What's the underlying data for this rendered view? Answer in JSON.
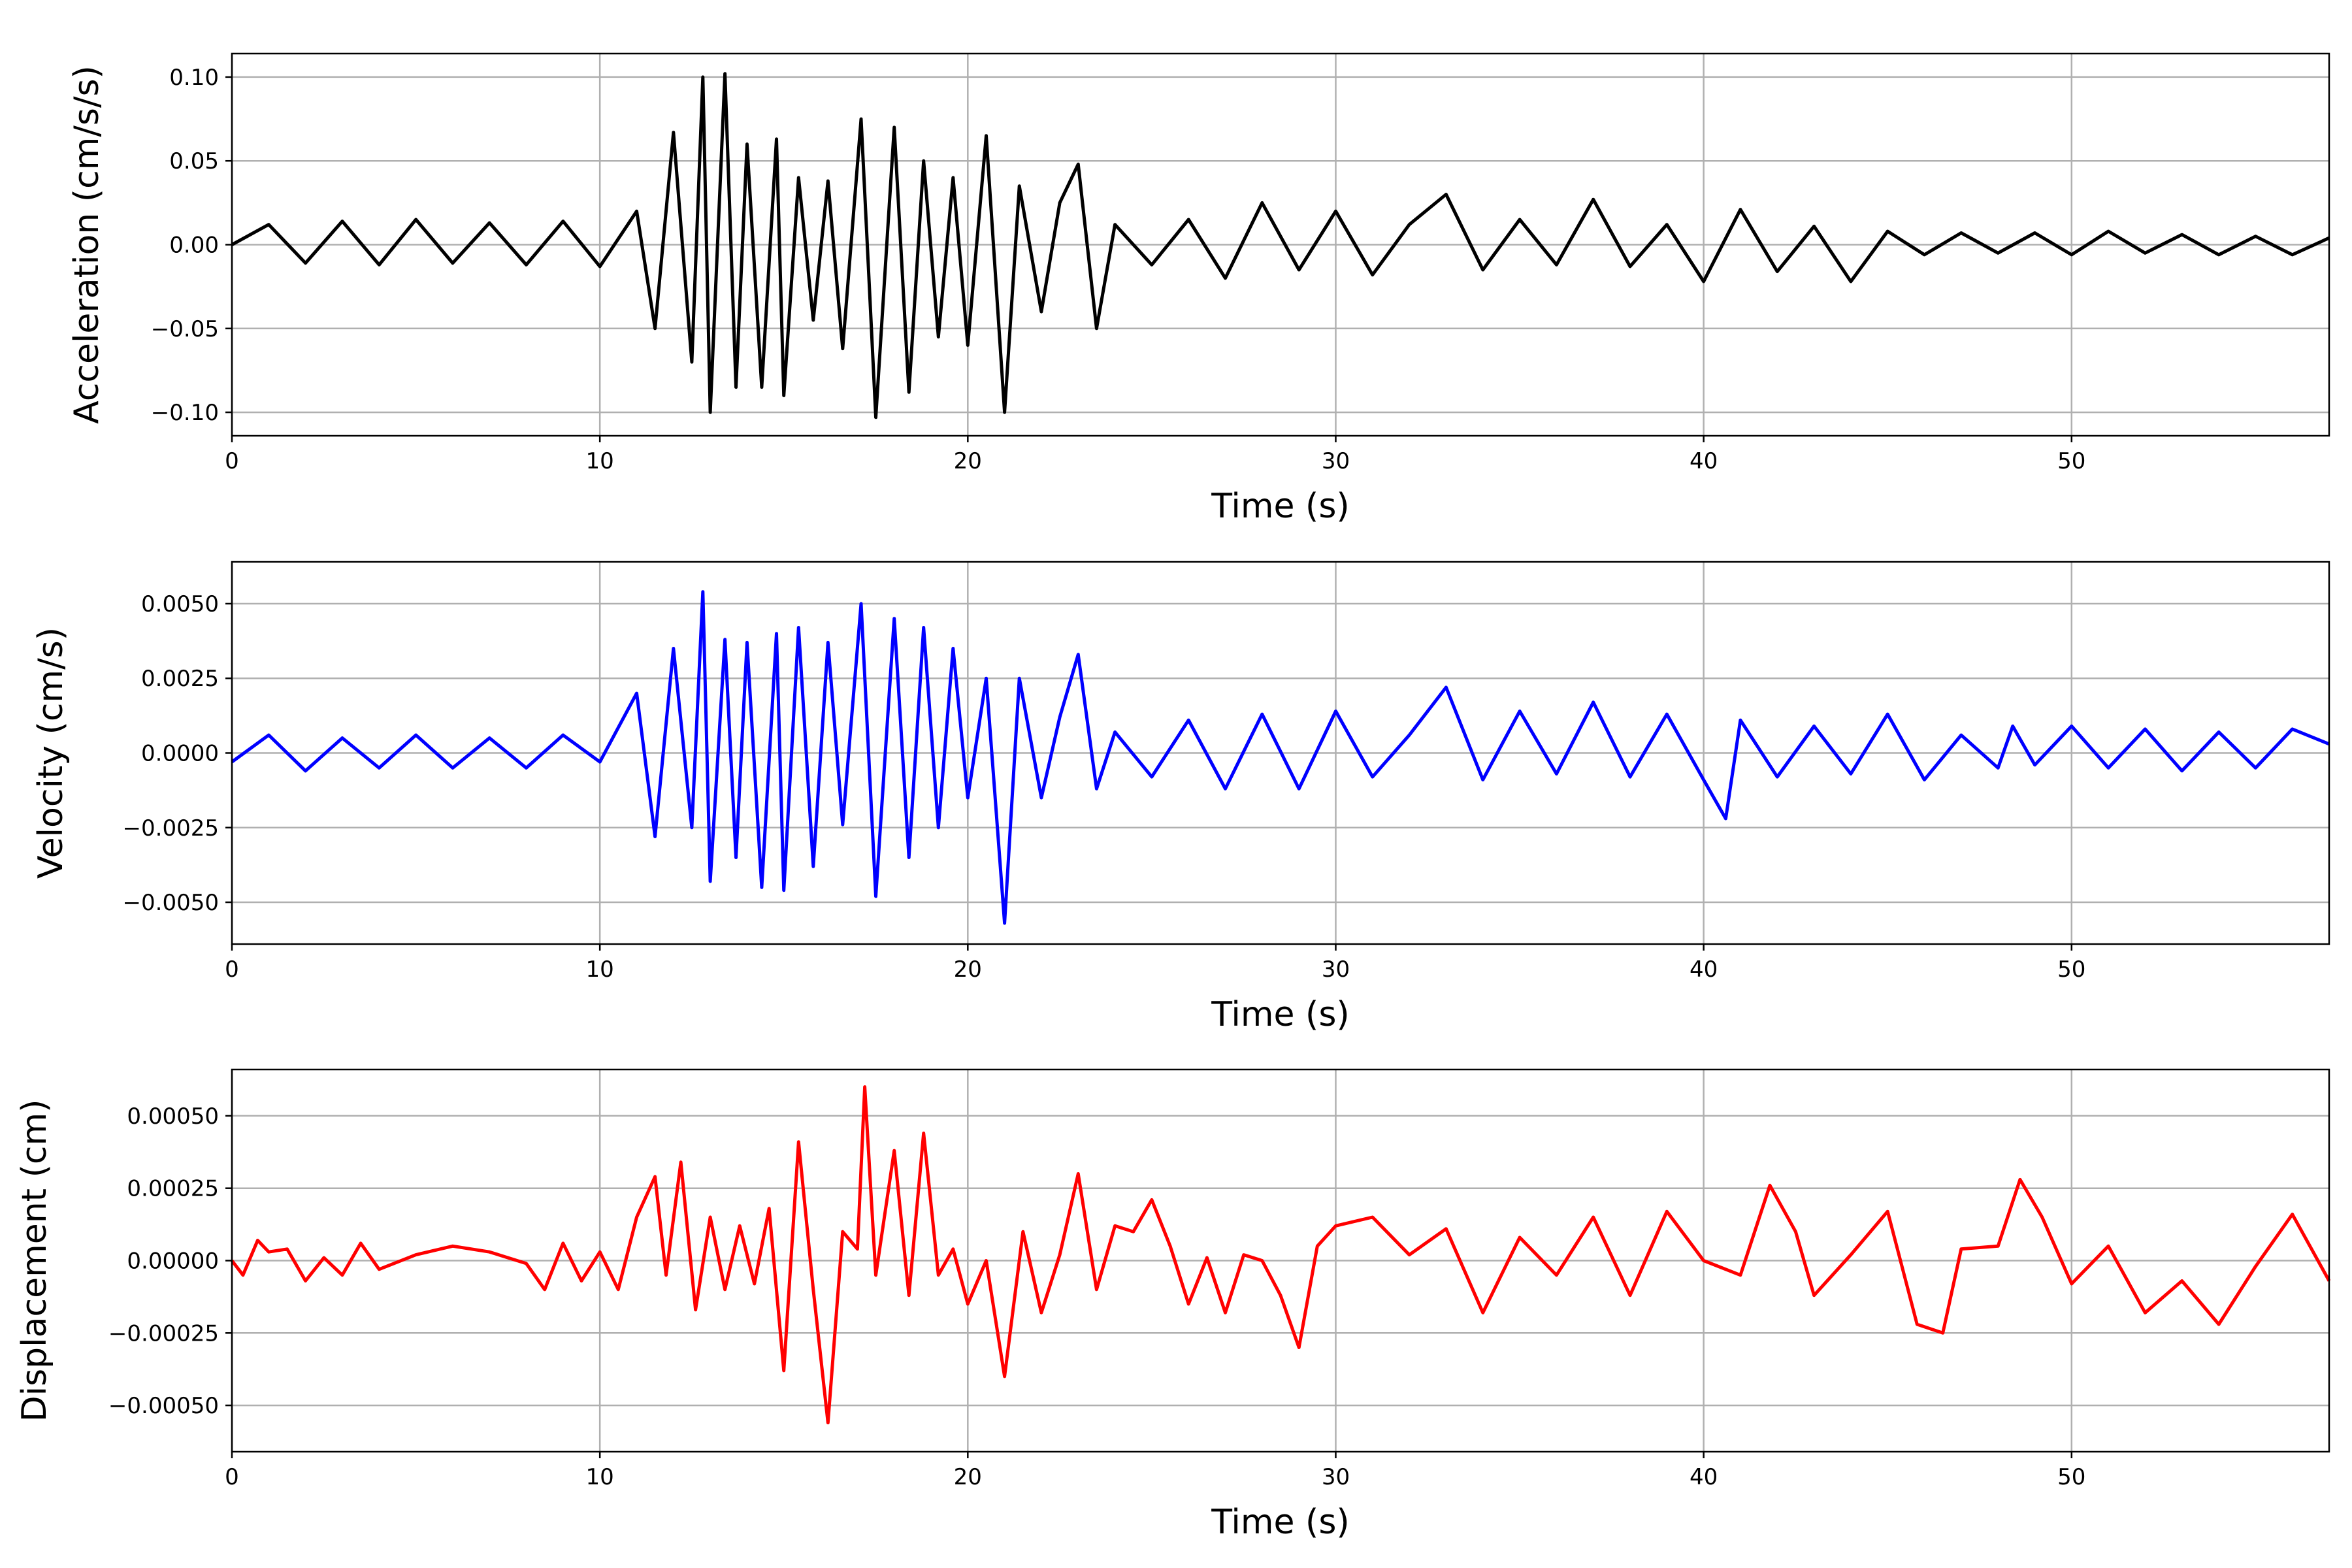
{
  "chart_data": [
    {
      "type": "line",
      "id": "acceleration",
      "xlabel": "Time (s)",
      "ylabel": "Acceleration (cm/s/s)",
      "xlim": [
        0,
        57
      ],
      "ylim": [
        -0.114,
        0.114
      ],
      "xticks": [
        0,
        10,
        20,
        30,
        40,
        50
      ],
      "yticks": [
        -0.1,
        -0.05,
        0.0,
        0.05,
        0.1
      ],
      "ytick_labels": [
        "−0.10",
        "−0.05",
        "0.00",
        "0.05",
        "0.10"
      ],
      "grid": true,
      "color": "#000000",
      "series": [
        {
          "x": [
            0,
            1,
            2,
            3,
            4,
            5,
            6,
            7,
            8,
            9,
            10,
            11,
            11.5,
            12,
            12.5,
            12.8,
            13,
            13.4,
            13.7,
            14,
            14.4,
            14.8,
            15,
            15.4,
            15.8,
            16.2,
            16.6,
            17.1,
            17.5,
            18,
            18.4,
            18.8,
            19.2,
            19.6,
            20,
            20.5,
            21,
            21.4,
            22,
            22.5,
            23,
            23.5,
            24,
            25,
            26,
            27,
            28,
            29,
            30,
            31,
            32,
            33,
            34,
            35,
            36,
            37,
            38,
            39,
            40,
            41,
            42,
            43,
            44,
            45,
            46,
            47,
            48,
            49,
            50,
            51,
            52,
            53,
            54,
            55,
            56,
            57
          ],
          "y": [
            0.0,
            0.012,
            -0.011,
            0.014,
            -0.012,
            0.015,
            -0.011,
            0.013,
            -0.012,
            0.014,
            -0.013,
            0.02,
            -0.05,
            0.067,
            -0.07,
            0.1,
            -0.1,
            0.102,
            -0.085,
            0.06,
            -0.085,
            0.063,
            -0.09,
            0.04,
            -0.045,
            0.038,
            -0.062,
            0.075,
            -0.103,
            0.07,
            -0.088,
            0.05,
            -0.055,
            0.04,
            -0.06,
            0.065,
            -0.1,
            0.035,
            -0.04,
            0.025,
            0.048,
            -0.05,
            0.012,
            -0.012,
            0.015,
            -0.02,
            0.025,
            -0.015,
            0.02,
            -0.018,
            0.012,
            0.03,
            -0.015,
            0.015,
            -0.012,
            0.027,
            -0.013,
            0.012,
            -0.022,
            0.021,
            -0.016,
            0.011,
            -0.022,
            0.008,
            -0.006,
            0.007,
            -0.005,
            0.007,
            -0.006,
            0.008,
            -0.005,
            0.006,
            -0.006,
            0.005,
            -0.006,
            0.004
          ]
        }
      ]
    },
    {
      "type": "line",
      "id": "velocity",
      "xlabel": "Time (s)",
      "ylabel": "Velocity (cm/s)",
      "xlim": [
        0,
        57
      ],
      "ylim": [
        -0.0064,
        0.0064
      ],
      "xticks": [
        0,
        10,
        20,
        30,
        40,
        50
      ],
      "yticks": [
        -0.005,
        -0.0025,
        0.0,
        0.0025,
        0.005
      ],
      "ytick_labels": [
        "−0.0050",
        "−0.0025",
        "0.0000",
        "0.0025",
        "0.0050"
      ],
      "grid": true,
      "color": "#0000ff",
      "series": [
        {
          "x": [
            0,
            1,
            2,
            3,
            4,
            5,
            6,
            7,
            8,
            9,
            10,
            11,
            11.5,
            12,
            12.5,
            12.8,
            13,
            13.4,
            13.7,
            14,
            14.4,
            14.8,
            15,
            15.4,
            15.8,
            16.2,
            16.6,
            17.1,
            17.5,
            18,
            18.4,
            18.8,
            19.2,
            19.6,
            20,
            20.5,
            21,
            21.4,
            22,
            22.5,
            23,
            23.5,
            24,
            25,
            26,
            27,
            28,
            29,
            30,
            31,
            32,
            33,
            34,
            35,
            36,
            37,
            38,
            39,
            40,
            40.6,
            41,
            42,
            43,
            44,
            45,
            46,
            47,
            48,
            48.4,
            49,
            50,
            51,
            52,
            53,
            54,
            55,
            56,
            57
          ],
          "y": [
            -0.0003,
            0.0006,
            -0.0006,
            0.0005,
            -0.0005,
            0.0006,
            -0.0005,
            0.0005,
            -0.0005,
            0.0006,
            -0.0003,
            0.002,
            -0.0028,
            0.0035,
            -0.0025,
            0.0054,
            -0.0043,
            0.0038,
            -0.0035,
            0.0037,
            -0.0045,
            0.004,
            -0.0046,
            0.0042,
            -0.0038,
            0.0037,
            -0.0024,
            0.005,
            -0.0048,
            0.0045,
            -0.0035,
            0.0042,
            -0.0025,
            0.0035,
            -0.0015,
            0.0025,
            -0.0057,
            0.0025,
            -0.0015,
            0.0012,
            0.0033,
            -0.0012,
            0.0007,
            -0.0008,
            0.0011,
            -0.0012,
            0.0013,
            -0.0012,
            0.0014,
            -0.0008,
            0.0006,
            0.0022,
            -0.0009,
            0.0014,
            -0.0007,
            0.0017,
            -0.0008,
            0.0013,
            -0.0009,
            -0.0022,
            0.0011,
            -0.0008,
            0.0009,
            -0.0007,
            0.0013,
            -0.0009,
            0.0006,
            -0.0005,
            0.0009,
            -0.0004,
            0.0009,
            -0.0005,
            0.0008,
            -0.0006,
            0.0007,
            -0.0005,
            0.0008,
            0.0003
          ]
        }
      ]
    },
    {
      "type": "line",
      "id": "displacement",
      "xlabel": "Time (s)",
      "ylabel": "Displacement (cm)",
      "xlim": [
        0,
        57
      ],
      "ylim": [
        -0.00066,
        0.00066
      ],
      "xticks": [
        0,
        10,
        20,
        30,
        40,
        50
      ],
      "yticks": [
        -0.0005,
        -0.00025,
        0.0,
        0.00025,
        0.0005
      ],
      "ytick_labels": [
        "−0.00050",
        "−0.00025",
        "0.00000",
        "0.00025",
        "0.00050"
      ],
      "grid": true,
      "color": "#ff0000",
      "series": [
        {
          "x": [
            0,
            0.3,
            0.7,
            1,
            1.5,
            2,
            2.5,
            3,
            3.5,
            4,
            5,
            6,
            7,
            8,
            8.5,
            9,
            9.5,
            10,
            10.5,
            11,
            11.5,
            11.8,
            12.2,
            12.6,
            13,
            13.4,
            13.8,
            14.2,
            14.6,
            15,
            15.4,
            15.8,
            16.2,
            16.6,
            17,
            17.2,
            17.5,
            18,
            18.4,
            18.8,
            19.2,
            19.6,
            20,
            20.5,
            21,
            21.5,
            22,
            22.5,
            23,
            23.5,
            24,
            24.5,
            25,
            25.5,
            26,
            26.5,
            27,
            27.5,
            28,
            28.5,
            29,
            29.5,
            30,
            31,
            32,
            33,
            34,
            35,
            36,
            37,
            38,
            39,
            40,
            41,
            41.8,
            42.5,
            43,
            44,
            45,
            45.8,
            46.5,
            47,
            48,
            48.6,
            49.2,
            50,
            51,
            52,
            53,
            54,
            55,
            56,
            57
          ],
          "y": [
            0.0,
            -5e-05,
            7e-05,
            3e-05,
            4e-05,
            -7e-05,
            1e-05,
            -5e-05,
            6e-05,
            -3e-05,
            2e-05,
            5e-05,
            3e-05,
            -1e-05,
            -0.0001,
            6e-05,
            -7e-05,
            3e-05,
            -0.0001,
            0.00015,
            0.00029,
            -5e-05,
            0.00034,
            -0.00017,
            0.00015,
            -0.0001,
            0.00012,
            -8e-05,
            0.00018,
            -0.00038,
            0.00041,
            -0.0001,
            -0.00056,
            0.0001,
            4e-05,
            0.0006,
            -5e-05,
            0.00038,
            -0.00012,
            0.00044,
            -5e-05,
            4e-05,
            -0.00015,
            0.0,
            -0.0004,
            0.0001,
            -0.00018,
            2e-05,
            0.0003,
            -0.0001,
            0.00012,
            0.0001,
            0.00021,
            5e-05,
            -0.00015,
            1e-05,
            -0.00018,
            2e-05,
            0.0,
            -0.00012,
            -0.0003,
            5e-05,
            0.00012,
            0.00015,
            2e-05,
            0.00011,
            -0.00018,
            8e-05,
            -5e-05,
            0.00015,
            -0.00012,
            0.00017,
            0.0,
            -5e-05,
            0.00026,
            0.0001,
            -0.00012,
            2e-05,
            0.00017,
            -0.00022,
            -0.00025,
            4e-05,
            5e-05,
            0.00028,
            0.00015,
            -8e-05,
            5e-05,
            -0.00018,
            -7e-05,
            -0.00022,
            -2e-05,
            0.00016,
            -7e-05
          ]
        }
      ]
    }
  ]
}
